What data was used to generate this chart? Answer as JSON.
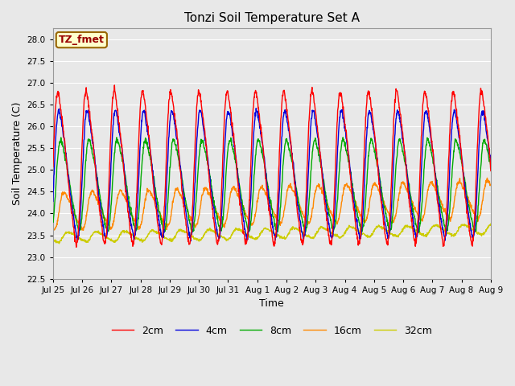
{
  "title": "Tonzi Soil Temperature Set A",
  "xlabel": "Time",
  "ylabel": "Soil Temperature (C)",
  "annotation_text": "TZ_fmet",
  "annotation_bg": "#ffffcc",
  "annotation_border": "#996600",
  "annotation_text_color": "#990000",
  "ylim": [
    22.5,
    28.25
  ],
  "bg_color": "#e8e8e8",
  "plot_bg": "#e8e8e8",
  "grid_color": "#ffffff",
  "line_colors": {
    "2cm": "#ff0000",
    "4cm": "#0000dd",
    "8cm": "#00aa00",
    "16cm": "#ff8800",
    "32cm": "#cccc00"
  },
  "line_width": 1.0,
  "total_days": 15.5,
  "points_per_day": 96,
  "base_2cm": 25.05,
  "base_4cm": 24.9,
  "base_8cm": 24.65,
  "base_16cm": 24.05,
  "base_32cm": 23.45,
  "amp_2cm": 2.1,
  "amp_4cm": 1.75,
  "amp_8cm": 1.25,
  "amp_16cm": 0.52,
  "amp_32cm": 0.14,
  "phase_shift_4cm": 0.25,
  "phase_shift_8cm": 0.65,
  "phase_shift_16cm": 1.35,
  "phase_shift_32cm": 2.2,
  "trend_16cm": 0.018,
  "trend_32cm": 0.012,
  "tick_labels": [
    "Jul 25",
    "Jul 26",
    "Jul 27",
    "Jul 28",
    "Jul 29",
    "Jul 30",
    "Jul 31",
    "Aug 1",
    "Aug 2",
    "Aug 3",
    "Aug 4",
    "Aug 5",
    "Aug 6",
    "Aug 7",
    "Aug 8",
    "Aug 9"
  ]
}
